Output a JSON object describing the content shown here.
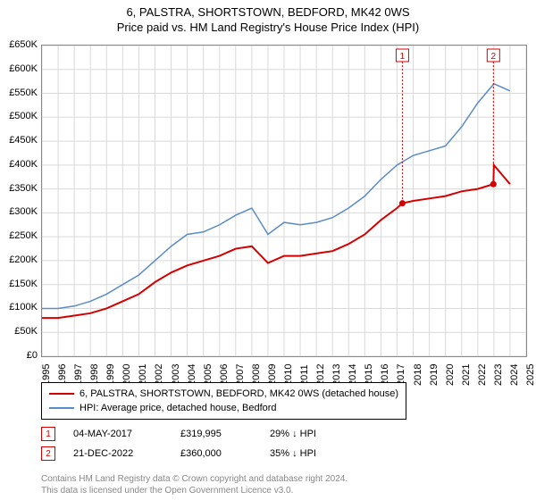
{
  "type": "line",
  "title_line1": "6, PALSTRA, SHORTSTOWN, BEDFORD, MK42 0WS",
  "title_line2": "Price paid vs. HM Land Registry's House Price Index (HPI)",
  "title_fontsize": 13,
  "label_fontsize": 11,
  "background_color": "#ffffff",
  "grid_color": "#d9d9d9",
  "border_color": "#888888",
  "ylim": [
    0,
    650000
  ],
  "ytick_step": 50000,
  "ytick_labels": [
    "£0",
    "£50K",
    "£100K",
    "£150K",
    "£200K",
    "£250K",
    "£300K",
    "£350K",
    "£400K",
    "£450K",
    "£500K",
    "£550K",
    "£600K",
    "£650K"
  ],
  "xlim": [
    1995,
    2025
  ],
  "xtick_step": 1,
  "xtick_labels": [
    "1995",
    "1996",
    "1997",
    "1998",
    "1999",
    "2000",
    "2001",
    "2002",
    "2003",
    "2004",
    "2005",
    "2006",
    "2007",
    "2008",
    "2009",
    "2010",
    "2011",
    "2012",
    "2013",
    "2014",
    "2015",
    "2016",
    "2017",
    "2018",
    "2019",
    "2020",
    "2021",
    "2022",
    "2023",
    "2024",
    "2025"
  ],
  "series": [
    {
      "name": "red",
      "legend": "6, PALSTRA, SHORTSTOWN, BEDFORD, MK42 0WS (detached house)",
      "color": "#d40000",
      "line_width": 2,
      "x": [
        1995,
        1996,
        1997,
        1998,
        1999,
        2000,
        2001,
        2002,
        2003,
        2004,
        2005,
        2006,
        2007,
        2008,
        2009,
        2010,
        2011,
        2012,
        2013,
        2014,
        2015,
        2016,
        2017,
        2017.33,
        2018,
        2019,
        2020,
        2021,
        2022,
        2022.97,
        2023,
        2024
      ],
      "y": [
        80000,
        80000,
        85000,
        90000,
        100000,
        115000,
        130000,
        155000,
        175000,
        190000,
        200000,
        210000,
        225000,
        230000,
        195000,
        210000,
        210000,
        215000,
        220000,
        235000,
        255000,
        285000,
        310000,
        319995,
        325000,
        330000,
        335000,
        345000,
        350000,
        360000,
        400000,
        360000
      ]
    },
    {
      "name": "blue",
      "legend": "HPI: Average price, detached house, Bedford",
      "color": "#5a8cc7",
      "line_width": 1.5,
      "x": [
        1995,
        1996,
        1997,
        1998,
        1999,
        2000,
        2001,
        2002,
        2003,
        2004,
        2005,
        2006,
        2007,
        2008,
        2009,
        2010,
        2011,
        2012,
        2013,
        2014,
        2015,
        2016,
        2017,
        2018,
        2019,
        2020,
        2021,
        2022,
        2023,
        2024
      ],
      "y": [
        100000,
        100000,
        105000,
        115000,
        130000,
        150000,
        170000,
        200000,
        230000,
        255000,
        260000,
        275000,
        295000,
        310000,
        255000,
        280000,
        275000,
        280000,
        290000,
        310000,
        335000,
        370000,
        400000,
        420000,
        430000,
        440000,
        480000,
        530000,
        570000,
        555000
      ]
    }
  ],
  "sale_markers": [
    {
      "n": "1",
      "x": 2017.33,
      "y": 319995,
      "date": "04-MAY-2017",
      "price": "£319,995",
      "delta": "29% ↓ HPI"
    },
    {
      "n": "2",
      "x": 2022.97,
      "y": 360000,
      "date": "21-DEC-2022",
      "price": "£360,000",
      "delta": "35% ↓ HPI"
    }
  ],
  "marker_color": "#d40000",
  "credit_line1": "Contains HM Land Registry data © Crown copyright and database right 2024.",
  "credit_line2": "This data is licensed under the Open Government Licence v3.0.",
  "credit_color": "#888888"
}
